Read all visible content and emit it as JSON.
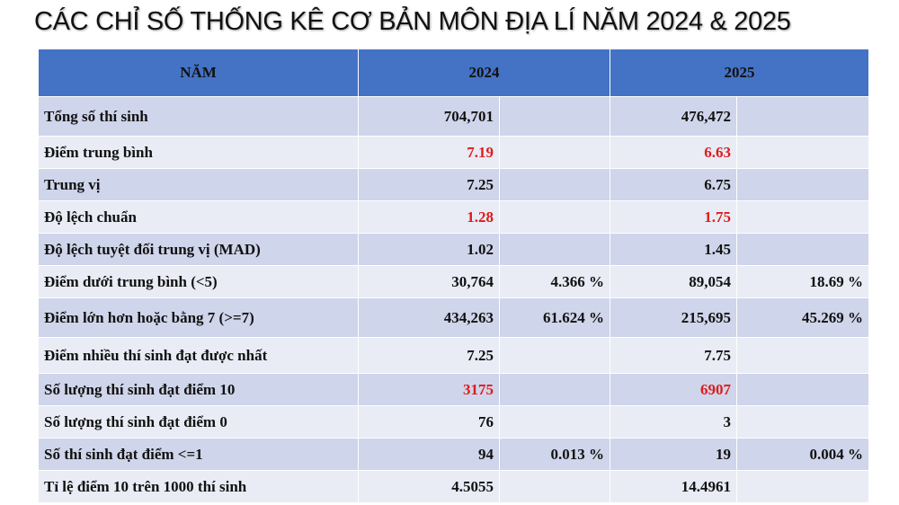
{
  "title": "CÁC CHỈ SỐ THỐNG KÊ CƠ BẢN MÔN ĐỊA LÍ NĂM 2024 & 2025",
  "header": {
    "col_year": "NĂM",
    "year_a": "2024",
    "year_b": "2025"
  },
  "accent_color": "#4472c4",
  "highlight_color": "#e01b1b",
  "rows": [
    {
      "label": "Tổng số thí sinh",
      "v2024": "704,701",
      "p2024": "",
      "v2025": "476,472",
      "p2025": "",
      "red": false
    },
    {
      "label": "Điểm trung bình",
      "v2024": "7.19",
      "p2024": "",
      "v2025": "6.63",
      "p2025": "",
      "red": true
    },
    {
      "label": "Trung vị",
      "v2024": "7.25",
      "p2024": "",
      "v2025": "6.75",
      "p2025": "",
      "red": false
    },
    {
      "label": "Độ lệch chuẩn",
      "v2024": "1.28",
      "p2024": "",
      "v2025": "1.75",
      "p2025": "",
      "red": true
    },
    {
      "label": "Độ lệch tuyệt đối trung vị (MAD)",
      "v2024": "1.02",
      "p2024": "",
      "v2025": "1.45",
      "p2025": "",
      "red": false
    },
    {
      "label": "Điểm dưới trung bình (<5)",
      "v2024": "30,764",
      "p2024": "4.366 %",
      "v2025": "89,054",
      "p2025": "18.69 %",
      "red": false
    },
    {
      "label": "Điểm lớn hơn hoặc bằng 7 (>=7)",
      "v2024": "434,263",
      "p2024": "61.624 %",
      "v2025": "215,695",
      "p2025": "45.269 %",
      "red": false
    },
    {
      "label": "Điểm nhiều thí sinh đạt được nhất",
      "v2024": "7.25",
      "p2024": "",
      "v2025": "7.75",
      "p2025": "",
      "red": false
    },
    {
      "label": "Số lượng thí sinh đạt điểm 10",
      "v2024": "3175",
      "p2024": "",
      "v2025": "6907",
      "p2025": "",
      "red": true
    },
    {
      "label": "Số lượng thí sinh đạt điểm 0",
      "v2024": "76",
      "p2024": "",
      "v2025": "3",
      "p2025": "",
      "red": false
    },
    {
      "label": "Số thí sinh đạt điểm <=1",
      "v2024": "94",
      "p2024": "0.013 %",
      "v2025": "19",
      "p2025": "0.004 %",
      "red": false
    },
    {
      "label": "Tỉ lệ điểm 10 trên 1000 thí sinh",
      "v2024": "4.5055",
      "p2024": "",
      "v2025": "14.4961",
      "p2025": "",
      "red": false
    }
  ]
}
